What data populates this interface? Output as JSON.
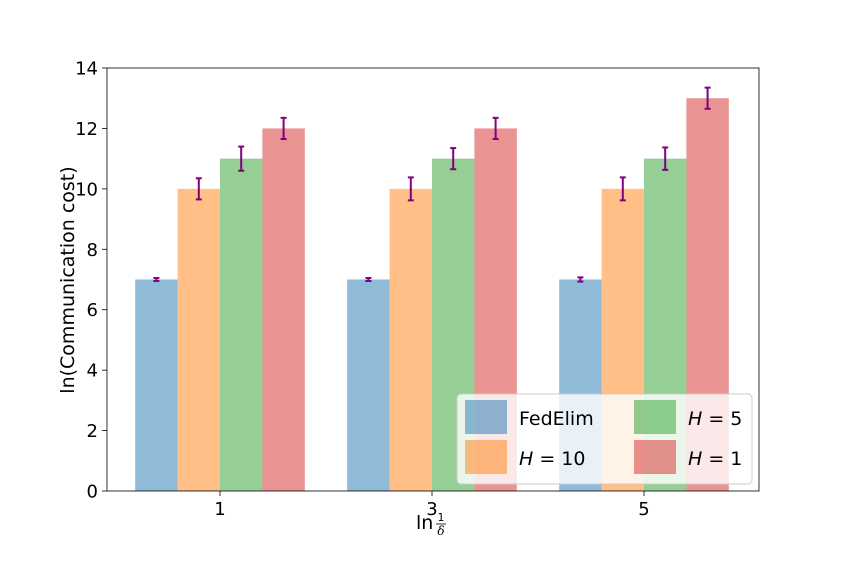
{
  "chart_data": {
    "type": "bar",
    "categories": [
      "1",
      "3",
      "5"
    ],
    "series": [
      {
        "name": "FedElim",
        "label_math": false,
        "values": [
          7,
          7,
          7
        ],
        "errors": [
          0.05,
          0.05,
          0.07
        ],
        "color": "#1f77b4"
      },
      {
        "name": "H = 10",
        "label_math": true,
        "var": "H",
        "num": "10",
        "values": [
          10,
          10,
          10
        ],
        "errors": [
          0.35,
          0.38,
          0.38
        ],
        "color": "#ff7f0e"
      },
      {
        "name": "H = 5",
        "label_math": true,
        "var": "H",
        "num": "5",
        "values": [
          11,
          11,
          11
        ],
        "errors": [
          0.4,
          0.35,
          0.37
        ],
        "color": "#2ca02c"
      },
      {
        "name": "H = 1",
        "label_math": true,
        "var": "H",
        "num": "1",
        "values": [
          12,
          12,
          13
        ],
        "errors": [
          0.35,
          0.35,
          0.35
        ],
        "color": "#d62728"
      }
    ],
    "error_color": "#800080",
    "xlabel": "ln",
    "xlabel_frac_num": "1",
    "xlabel_frac_den": "δ",
    "ylabel": "ln(Communication cost)",
    "ylim": [
      0,
      14
    ],
    "yticks": [
      "0",
      "2",
      "4",
      "6",
      "8",
      "10",
      "12",
      "14"
    ],
    "legend_position": "bottom-right",
    "grid": false
  }
}
